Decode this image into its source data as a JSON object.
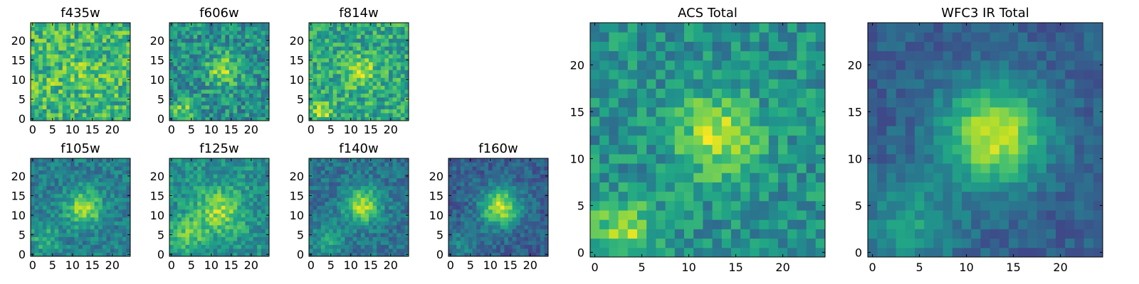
{
  "chart_data": [
    {
      "type": "heatmap",
      "title": "f435w",
      "grid": "25x25",
      "colormap": "viridis",
      "xlim": [
        0,
        24
      ],
      "ylim": [
        0,
        24
      ],
      "xticks": [
        0,
        5,
        10,
        15,
        20
      ],
      "yticks": [
        0,
        5,
        10,
        15,
        20
      ],
      "structure": {
        "blob_center": [
          13,
          12
        ],
        "blob_sigma": 3.5,
        "blob_amp": 0.1,
        "blob2_center": [
          3,
          8
        ],
        "blob2_sigma": 2,
        "blob2_amp": 0.1,
        "base": 0.66,
        "noise": 0.22,
        "seed": 11
      }
    },
    {
      "type": "heatmap",
      "title": "f606w",
      "grid": "25x25",
      "colormap": "viridis",
      "xlim": [
        0,
        24
      ],
      "ylim": [
        0,
        24
      ],
      "xticks": [
        0,
        5,
        10,
        15,
        20
      ],
      "yticks": [
        0,
        5,
        10,
        15,
        20
      ],
      "structure": {
        "blob_center": [
          13,
          12.5
        ],
        "blob_sigma": 2.8,
        "blob_amp": 0.35,
        "blob2_center": [
          3,
          2
        ],
        "blob2_sigma": 2,
        "blob2_amp": 0.3,
        "base": 0.5,
        "noise": 0.2,
        "seed": 23
      }
    },
    {
      "type": "heatmap",
      "title": "f814w",
      "grid": "25x25",
      "colormap": "viridis",
      "xlim": [
        0,
        24
      ],
      "ylim": [
        0,
        24
      ],
      "xticks": [
        0,
        5,
        10,
        15,
        20
      ],
      "yticks": [
        0,
        5,
        10,
        15,
        20
      ],
      "structure": {
        "blob_center": [
          12.5,
          12
        ],
        "blob_sigma": 2.6,
        "blob_amp": 0.3,
        "blob2_center": [
          3,
          2
        ],
        "blob2_sigma": 2,
        "blob2_amp": 0.25,
        "base": 0.6,
        "noise": 0.2,
        "seed": 37
      }
    },
    {
      "type": "heatmap",
      "title": "f105w",
      "grid": "25x25",
      "colormap": "viridis",
      "xlim": [
        0,
        24
      ],
      "ylim": [
        0,
        24
      ],
      "xticks": [
        0,
        5,
        10,
        15,
        20
      ],
      "yticks": [
        0,
        5,
        10,
        15,
        20
      ],
      "structure": {
        "blob_center": [
          13,
          12
        ],
        "blob_sigma": 3.2,
        "blob_amp": 0.45,
        "blob2_center": [
          3,
          4
        ],
        "blob2_sigma": 3,
        "blob2_amp": 0.2,
        "base": 0.42,
        "noise": 0.14,
        "seed": 41
      }
    },
    {
      "type": "heatmap",
      "title": "f125w",
      "grid": "25x25",
      "colormap": "viridis",
      "xlim": [
        0,
        24
      ],
      "ylim": [
        0,
        24
      ],
      "xticks": [
        0,
        5,
        10,
        15,
        20
      ],
      "yticks": [
        0,
        5,
        10,
        15,
        20
      ],
      "structure": {
        "blob_center": [
          12,
          11
        ],
        "blob_sigma": 4,
        "blob_amp": 0.35,
        "blob2_center": [
          4,
          5
        ],
        "blob2_sigma": 3,
        "blob2_amp": 0.25,
        "base": 0.5,
        "noise": 0.15,
        "seed": 53
      }
    },
    {
      "type": "heatmap",
      "title": "f140w",
      "grid": "25x25",
      "colormap": "viridis",
      "xlim": [
        0,
        24
      ],
      "ylim": [
        0,
        24
      ],
      "xticks": [
        0,
        5,
        10,
        15,
        20
      ],
      "yticks": [
        0,
        5,
        10,
        15,
        20
      ],
      "structure": {
        "blob_center": [
          13,
          12.5
        ],
        "blob_sigma": 3.2,
        "blob_amp": 0.5,
        "blob2_center": [
          4,
          3
        ],
        "blob2_sigma": 3,
        "blob2_amp": 0.2,
        "base": 0.38,
        "noise": 0.13,
        "seed": 67
      }
    },
    {
      "type": "heatmap",
      "title": "f160w",
      "grid": "25x25",
      "colormap": "viridis",
      "xlim": [
        0,
        24
      ],
      "ylim": [
        0,
        24
      ],
      "xticks": [
        0,
        5,
        10,
        15,
        20
      ],
      "yticks": [
        0,
        5,
        10,
        15,
        20
      ],
      "structure": {
        "blob_center": [
          12.5,
          12
        ],
        "blob_sigma": 3.5,
        "blob_amp": 0.6,
        "blob2_center": [
          3,
          3
        ],
        "blob2_sigma": 3,
        "blob2_amp": 0.18,
        "base": 0.3,
        "noise": 0.12,
        "seed": 79
      }
    },
    {
      "type": "heatmap",
      "title": "ACS Total",
      "grid": "25x25",
      "colormap": "viridis",
      "xlim": [
        0,
        24
      ],
      "ylim": [
        0,
        24
      ],
      "xticks": [
        0,
        5,
        10,
        15,
        20
      ],
      "yticks": [
        0,
        5,
        10,
        15,
        20
      ],
      "structure": {
        "blob_center": [
          13,
          12.5
        ],
        "blob_sigma": 3,
        "blob_amp": 0.4,
        "blob2_center": [
          3,
          2
        ],
        "blob2_sigma": 2.5,
        "blob2_amp": 0.35,
        "base": 0.5,
        "noise": 0.16,
        "seed": 97
      }
    },
    {
      "type": "heatmap",
      "title": "WFC3 IR Total",
      "grid": "25x25",
      "colormap": "viridis",
      "xlim": [
        0,
        24
      ],
      "ylim": [
        0,
        24
      ],
      "xticks": [
        0,
        5,
        10,
        15,
        20
      ],
      "yticks": [
        0,
        5,
        10,
        15,
        20
      ],
      "structure": {
        "blob_center": [
          13,
          12.5
        ],
        "blob_sigma": 3.8,
        "blob_amp": 0.62,
        "blob2_center": [
          4,
          3
        ],
        "blob2_sigma": 3.5,
        "blob2_amp": 0.25,
        "base": 0.3,
        "noise": 0.09,
        "seed": 113
      }
    }
  ]
}
